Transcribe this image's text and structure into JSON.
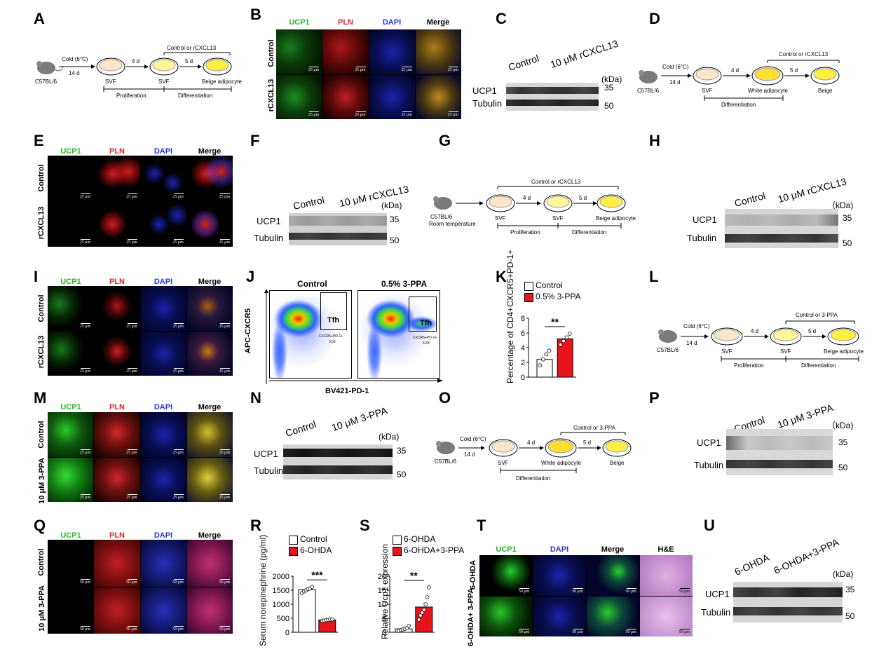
{
  "panels": {
    "A": {
      "label": "A",
      "mouse": "C57BL/6",
      "cold": "Cold (6°C)",
      "days1": "14 d",
      "step1": "4 d",
      "step2": "5 d",
      "dish1": "SVF",
      "dish2": "SVF",
      "dish3": "Beige adipocyte",
      "treatment": "Control or rCXCL13",
      "phase1": "Proliferation",
      "phase2": "Differentiation"
    },
    "B": {
      "label": "B",
      "channels": [
        "UCP1",
        "PLN",
        "DAPI",
        "Merge"
      ],
      "rows": [
        "Control",
        "rCXCL13"
      ],
      "scale": "25 μm"
    },
    "C": {
      "label": "C",
      "groups": [
        "Control",
        "10 μM rCXCL13"
      ],
      "kda": "(kDa)",
      "proteins": [
        "UCP1",
        "Tubulin"
      ],
      "mw": [
        "35",
        "50"
      ]
    },
    "D": {
      "label": "D",
      "mouse": "C57BL/6",
      "cold": "Cold (6°C)",
      "days1": "14 d",
      "step1": "4 d",
      "step2": "5 d",
      "dish1": "SVF",
      "dish2": "White adipocyte",
      "dish3": "Beige",
      "treatment": "Control or rCXCL13",
      "phase": "Differentiation"
    },
    "E": {
      "label": "E",
      "channels": [
        "UCP1",
        "PLN",
        "DAPI",
        "Merge"
      ],
      "rows": [
        "Control",
        "rCXCL13"
      ],
      "scale": "25 μm"
    },
    "F": {
      "label": "F",
      "groups": [
        "Control",
        "10 μM rCXCL13"
      ],
      "kda": "(kDa)",
      "proteins": [
        "UCP1",
        "Tubulin"
      ],
      "mw": [
        "35",
        "50"
      ]
    },
    "G": {
      "label": "G",
      "mouse": "C57BL/6",
      "temp": "Room temperature",
      "step1": "4 d",
      "step2": "5 d",
      "dish1": "SVF",
      "dish2": "SVF",
      "dish3": "Beige adipocyte",
      "treatment": "Control or rCXCL13",
      "phase1": "Proliferation",
      "phase2": "Differentiation"
    },
    "H": {
      "label": "H",
      "groups": [
        "Control",
        "10 μM rCXCL13"
      ],
      "kda": "（kDa)",
      "proteins": [
        "UCP1",
        "Tubulin"
      ],
      "mw": [
        "35",
        "50"
      ]
    },
    "I": {
      "label": "I",
      "channels": [
        "UCP1",
        "PLN",
        "DAPI",
        "Merge"
      ],
      "rows": [
        "Control",
        "rCXCL13"
      ],
      "scale": "25 μm"
    },
    "J": {
      "label": "J",
      "titles": [
        "Control",
        "0.5% 3-PPA"
      ],
      "ylabel": "APC-CXCR5",
      "xlabel": "BV421-PD-1",
      "gate": "Tfh",
      "gate_label": "CXCR5+PD-1+",
      "values": [
        "3.52",
        "5.83"
      ]
    },
    "K": {
      "label": "K",
      "legend": [
        "Control",
        "0.5% 3-PPA"
      ],
      "ylabel": "Percentage of CD4+CXCR5+PD-1+",
      "sig": "**",
      "yticks": [
        "0",
        "2",
        "4",
        "6",
        "8"
      ]
    },
    "L": {
      "label": "L",
      "mouse": "C57BL/6",
      "cold": "Cold (6°C)",
      "days1": "14 d",
      "step1": "4 d",
      "step2": "5 d",
      "dish1": "SVF",
      "dish2": "SVF",
      "dish3": "Beige adipocyte",
      "treatment": "Control or 3-PPA",
      "phase1": "Proliferation",
      "phase2": "Differentiation"
    },
    "M": {
      "label": "M",
      "channels": [
        "UCP1",
        "PLN",
        "DAPI",
        "Merge"
      ],
      "rows": [
        "Control",
        "10 μM 3-PPA"
      ],
      "scale": "25 μm"
    },
    "N": {
      "label": "N",
      "groups": [
        "Control",
        "10 μM 3-PPA"
      ],
      "kda": "(kDa)",
      "proteins": [
        "UCP1",
        "Tubulin"
      ],
      "mw": [
        "35",
        "50"
      ]
    },
    "O": {
      "label": "O",
      "mouse": "C57BL/6",
      "cold": "Cold (6°C)",
      "days1": "14 d",
      "step1": "4 d",
      "step2": "5 d",
      "dish1": "SVF",
      "dish2": "White adipocyte",
      "dish3": "Beige",
      "treatment": "Control or 3-PPA",
      "phase": "Differentiation"
    },
    "P": {
      "label": "P",
      "groups": [
        "Control",
        "10 μM 3-PPA"
      ],
      "kda": "（kDa)",
      "proteins": [
        "UCP1",
        "Tubulin"
      ],
      "mw": [
        "35",
        "50"
      ]
    },
    "Q": {
      "label": "Q",
      "channels": [
        "UCP1",
        "PLN",
        "DAPI",
        "Merge"
      ],
      "rows": [
        "Control",
        "10 μM 3-PPA"
      ],
      "scale": "50 μm"
    },
    "R": {
      "label": "R",
      "legend": [
        "Control",
        "6-OHDA"
      ],
      "ylabel": "Serum norepinephrine (pg/ml)",
      "sig": "***",
      "yticks": [
        "0",
        "500",
        "1000",
        "1500",
        "2000"
      ]
    },
    "S": {
      "label": "S",
      "legend": [
        "6-OHDA",
        "6-OHDA+3-PPA"
      ],
      "ylabel": "Relative Ucp1 expression",
      "sig": "**",
      "yticks": [
        "0",
        "5",
        "10",
        "15",
        "20"
      ]
    },
    "T": {
      "label": "T",
      "channels": [
        "UCP1",
        "DAPI",
        "Merge",
        "H&E"
      ],
      "rows": [
        "6-OHDA",
        "6-OHDA+ 3-PPA"
      ],
      "scale": "50 μm"
    },
    "U": {
      "label": "U",
      "groups": [
        "6-OHDA",
        "6-OHDA+3-PPA"
      ],
      "kda": "(kDa)",
      "proteins": [
        "UCP1",
        "Tubulin"
      ],
      "mw": [
        "35",
        "50"
      ]
    }
  },
  "chart_data": [
    {
      "type": "bar",
      "panel": "K",
      "categories": [
        "Control",
        "0.5% 3-PPA"
      ],
      "values": [
        2.4,
        5.2
      ],
      "points": [
        [
          1.6,
          2.4,
          3.1,
          3.6
        ],
        [
          4.4,
          4.9,
          5.4,
          5.9
        ]
      ],
      "ylabel": "Percentage of CD4+CXCR5+PD-1+",
      "ylim": [
        0,
        8
      ],
      "colors": [
        "#ffffff",
        "#e8141b"
      ]
    },
    {
      "type": "bar",
      "panel": "R",
      "categories": [
        "Control",
        "6-OHDA"
      ],
      "values": [
        1520,
        440
      ],
      "points": [
        [
          1400,
          1460,
          1500,
          1540,
          1560,
          1620
        ],
        [
          410,
          420,
          430,
          440,
          450,
          460
        ]
      ],
      "ylabel": "Serum norepinephrine (pg/ml)",
      "ylim": [
        0,
        2000
      ],
      "colors": [
        "#ffffff",
        "#e8141b"
      ]
    },
    {
      "type": "bar",
      "panel": "S",
      "categories": [
        "6-OHDA",
        "6-OHDA+3-PPA"
      ],
      "values": [
        1.2,
        9.0
      ],
      "points": [
        [
          0.5,
          0.8,
          1.0,
          1.2,
          1.5,
          2.3
        ],
        [
          4.5,
          6.0,
          7.0,
          8.0,
          10.0,
          12.5,
          16.0
        ]
      ],
      "ylabel": "Relative Ucp1 expression",
      "ylim": [
        0,
        20
      ],
      "colors": [
        "#ffffff",
        "#e8141b"
      ]
    }
  ]
}
